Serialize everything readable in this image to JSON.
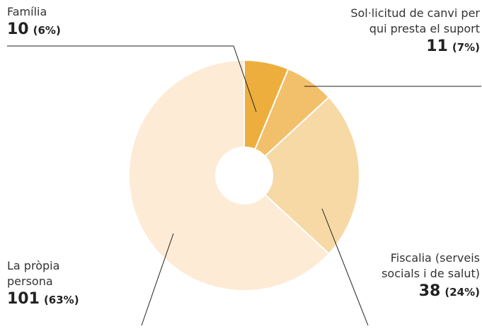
{
  "chart_data": {
    "type": "donut",
    "categories": [
      "Família",
      "Sol·licitud de canvi per qui presta el suport",
      "Fiscalia (serveis socials i de salut)",
      "La pròpia persona"
    ],
    "values": [
      10,
      11,
      38,
      101
    ],
    "percent_labels": [
      "(6%)",
      "(7%)",
      "(24%)",
      "(63%)"
    ],
    "colors": [
      "#edae3e",
      "#f2c06a",
      "#f7d9a6",
      "#fdebd6"
    ]
  }
}
